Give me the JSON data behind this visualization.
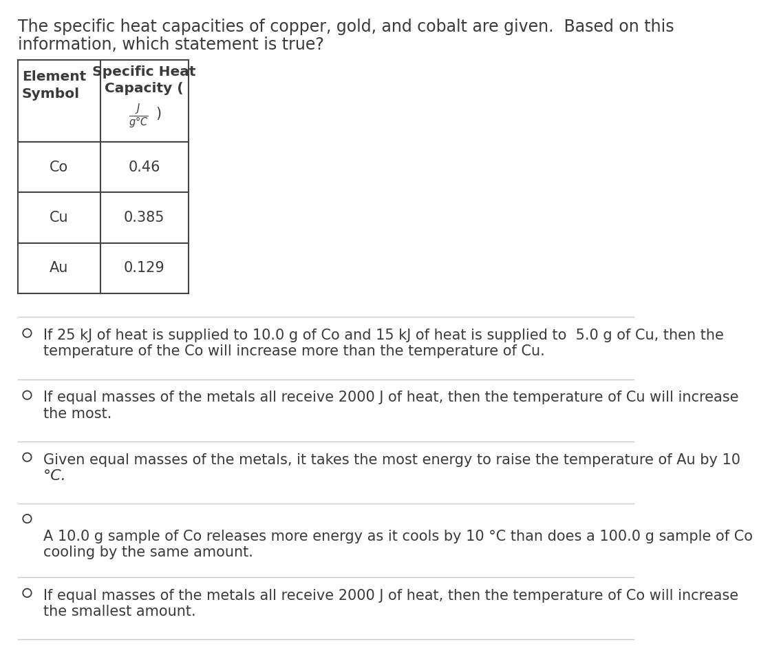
{
  "title_line1": "The specific heat capacities of copper, gold, and cobalt are given.  Based on this",
  "title_line2": "information, which statement is true?",
  "table": {
    "rows": [
      {
        "symbol": "Co",
        "value": "0.46"
      },
      {
        "symbol": "Cu",
        "value": "0.385"
      },
      {
        "symbol": "Au",
        "value": "0.129"
      }
    ]
  },
  "options": [
    {
      "text_line1": "If 25 kJ of heat is supplied to 10.0 g of Co and 15 kJ of heat is supplied to  5.0 g of Cu, then the",
      "text_line2": "temperature of the Co will increase more than the temperature of Cu."
    },
    {
      "text_line1": "If equal masses of the metals all receive 2000 J of heat, then the temperature of Cu will increase",
      "text_line2": "the most."
    },
    {
      "text_line1": "Given equal masses of the metals, it takes the most energy to raise the temperature of Au by 10",
      "text_line2": "°C."
    },
    {
      "text_line1": "A 10.0 g sample of Co releases more energy as it cools by 10 °C than does a 100.0 g sample of Co",
      "text_line2": "cooling by the same amount."
    },
    {
      "text_line1": "If equal masses of the metals all receive 2000 J of heat, then the temperature of Co will increase",
      "text_line2": "the smallest amount."
    }
  ],
  "bg_color": "#ffffff",
  "text_color": "#3a3a3a",
  "table_border_color": "#444444",
  "divider_color": "#c8c8c8",
  "font_size_title": 17,
  "font_size_table_header": 14.5,
  "font_size_table_data": 15,
  "font_size_options": 15
}
